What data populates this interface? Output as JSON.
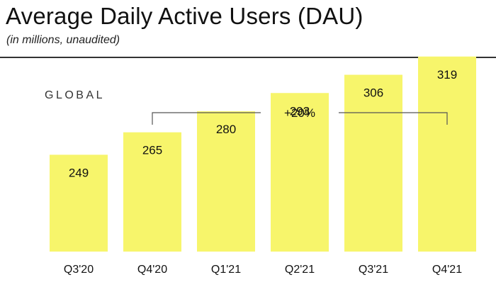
{
  "header": {
    "title": "Average Daily Active Users (DAU)",
    "subtitle": "(in millions, unaudited)"
  },
  "colors": {
    "bar": "#f7f56b",
    "text": "#111111",
    "rule": "#333333",
    "bracket": "#555555"
  },
  "chart_data": {
    "type": "bar",
    "title": "",
    "region_label": "GLOBAL",
    "categories": [
      "Q3'20",
      "Q4'20",
      "Q1'21",
      "Q2'21",
      "Q3'21",
      "Q4'21"
    ],
    "values": [
      249,
      265,
      280,
      293,
      306,
      319
    ],
    "xlabel": "",
    "ylabel": "",
    "grid": false,
    "legend": "none",
    "annotation": {
      "text": "+20%",
      "from": "Q4'20",
      "to": "Q4'21"
    }
  }
}
